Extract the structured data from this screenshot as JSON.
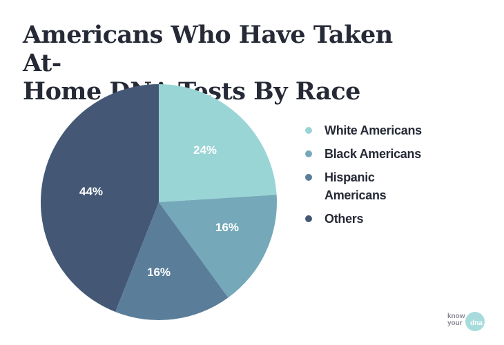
{
  "title": "Americans Who Have Taken At-Home DNA Tests By Race",
  "title_lines": [
    "Americans Who Have Taken At-",
    "Home DNA Tests By Race"
  ],
  "legend": [
    {
      "label": "White Americans",
      "color": "#9ad5d6"
    },
    {
      "label": "Black Americans",
      "color": "#75a9ba"
    },
    {
      "label": "Hispanic Americans",
      "color": "#5a7e9a"
    },
    {
      "label": "Others",
      "color": "#445876"
    }
  ],
  "slice_labels": [
    "24%",
    "16%",
    "16%",
    "44%"
  ],
  "logo": {
    "line1": "know",
    "line2": "your",
    "badge": "dna"
  },
  "chart_data": {
    "type": "pie",
    "title": "Americans Who Have Taken At-Home DNA Tests By Race",
    "categories": [
      "White Americans",
      "Black Americans",
      "Hispanic Americans",
      "Others"
    ],
    "values": [
      24,
      16,
      16,
      44
    ],
    "unit": "%",
    "colors": [
      "#9ad5d6",
      "#75a9ba",
      "#5a7e9a",
      "#445876"
    ],
    "start_angle": "12 o'clock, clockwise",
    "legend_position": "right"
  }
}
